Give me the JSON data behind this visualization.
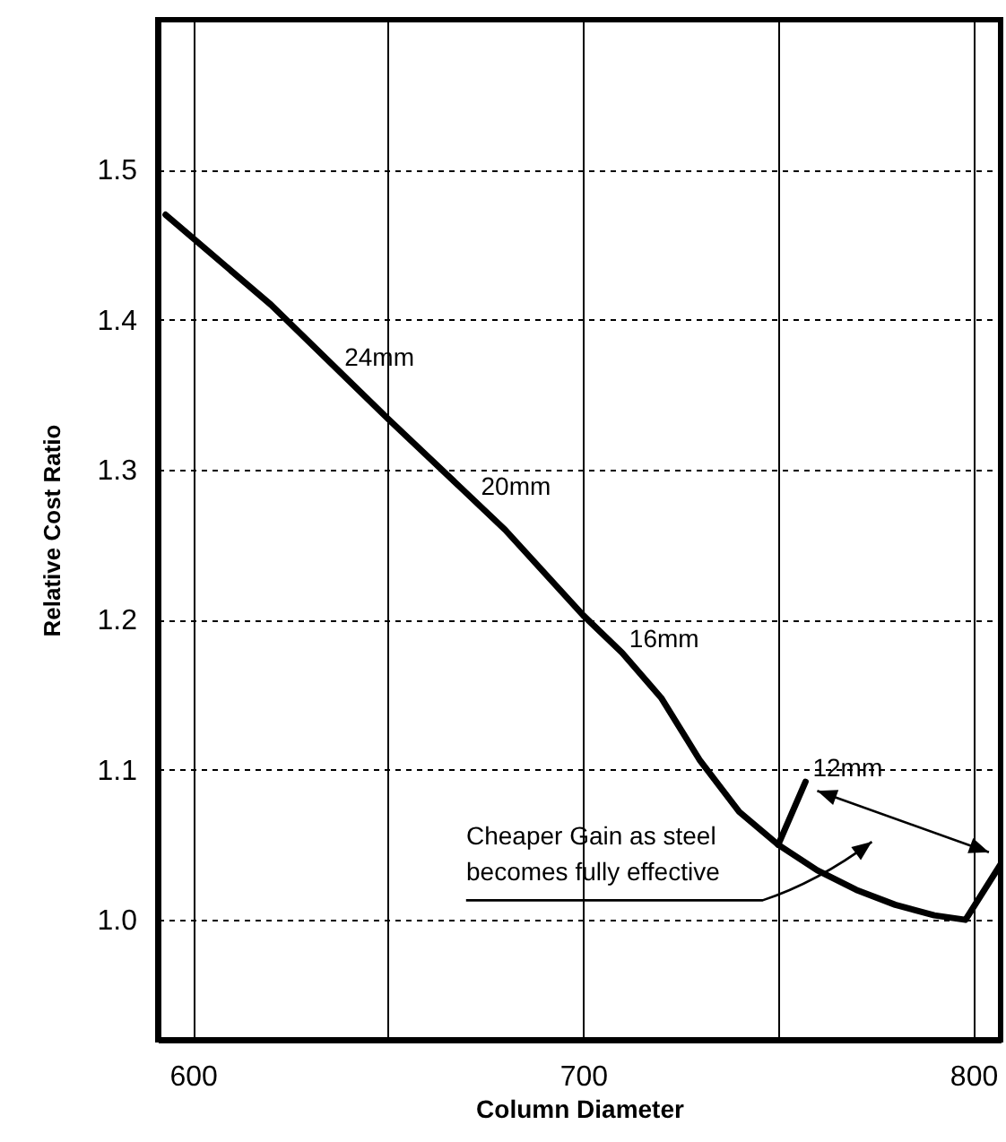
{
  "chart_data": {
    "type": "line",
    "xlabel": "Column Diameter",
    "ylabel": "Relative Cost Ratio",
    "xlim": [
      591,
      807
    ],
    "ylim": [
      0.92,
      1.6
    ],
    "xticks": [
      600,
      {
        "value": 650,
        "label": null
      },
      700,
      {
        "value": 750,
        "label": null
      },
      800
    ],
    "yticks": [
      {
        "value": 1,
        "label": "1.0"
      },
      {
        "value": 1.1,
        "label": "1.1"
      },
      {
        "value": 1.2,
        "label": "1.2"
      },
      {
        "value": 1.3,
        "label": "1.3"
      },
      {
        "value": 1.4,
        "label": "1.4"
      },
      {
        "value": 1.5,
        "label": "1.5"
      }
    ],
    "grid": true,
    "series": [
      {
        "color": "#000000",
        "x": [
          593,
          620,
          650,
          680,
          700,
          710,
          720,
          730,
          740,
          750,
          760,
          770,
          780,
          790,
          798,
          807
        ],
        "values": [
          1.47,
          1.41,
          1.334,
          1.26,
          1.203,
          1.178,
          1.148,
          1.106,
          1.072,
          1.05,
          1.033,
          1.02,
          1.01,
          1.003,
          1.0,
          1.037
        ]
      },
      {
        "color": "#000000",
        "x": [
          750,
          757
        ],
        "values": [
          1.05,
          1.092
        ]
      }
    ],
    "annotations": [
      {
        "text": "24mm",
        "x": 637,
        "y": 1.366
      },
      {
        "text": "20mm",
        "x": 672,
        "y": 1.28
      },
      {
        "text": "16mm",
        "x": 710,
        "y": 1.178
      },
      {
        "text": "12mm",
        "x": 757,
        "y": 1.092
      },
      "Cheaper Gain as steel\nbecomes fully effective"
    ]
  }
}
